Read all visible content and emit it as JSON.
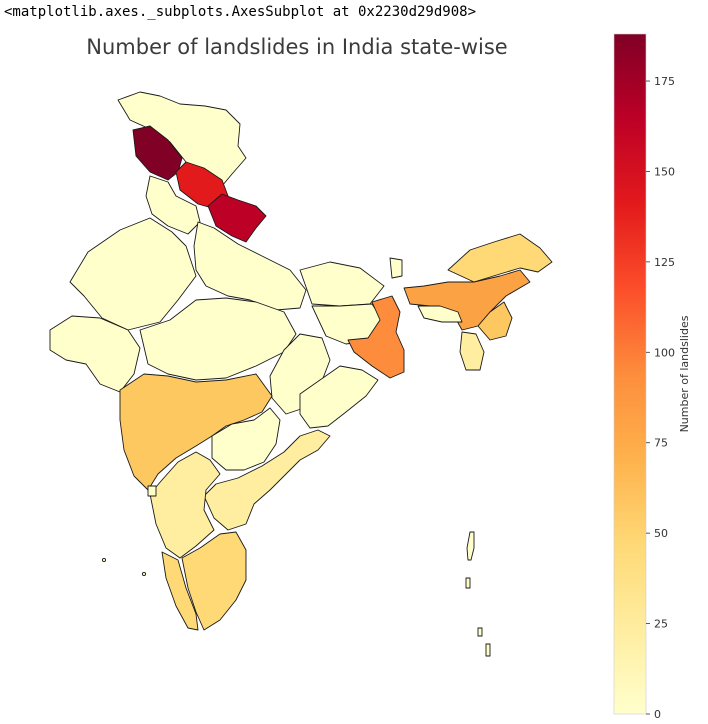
{
  "output_repr": "<matplotlib.axes._subplots.AxesSubplot at 0x2230d29d908>",
  "chart_data": {
    "type": "choropleth",
    "title": "Number of landslides in India state-wise",
    "colormap": "YlOrRd",
    "colorbar": {
      "label": "Number of landslides",
      "range": [
        0,
        188
      ],
      "ticks": [
        0,
        25,
        50,
        75,
        100,
        125,
        150,
        175
      ],
      "tick_labels": [
        "0",
        "25",
        "50",
        "75",
        "100",
        "125",
        "150",
        "175"
      ]
    },
    "axis_visible": false
  },
  "colors": {
    "ylorrd": [
      "#ffffcc",
      "#ffeda0",
      "#fed976",
      "#feb24c",
      "#fd8d3c",
      "#fc4e2a",
      "#e31a1c",
      "#bd0026",
      "#800026"
    ]
  }
}
